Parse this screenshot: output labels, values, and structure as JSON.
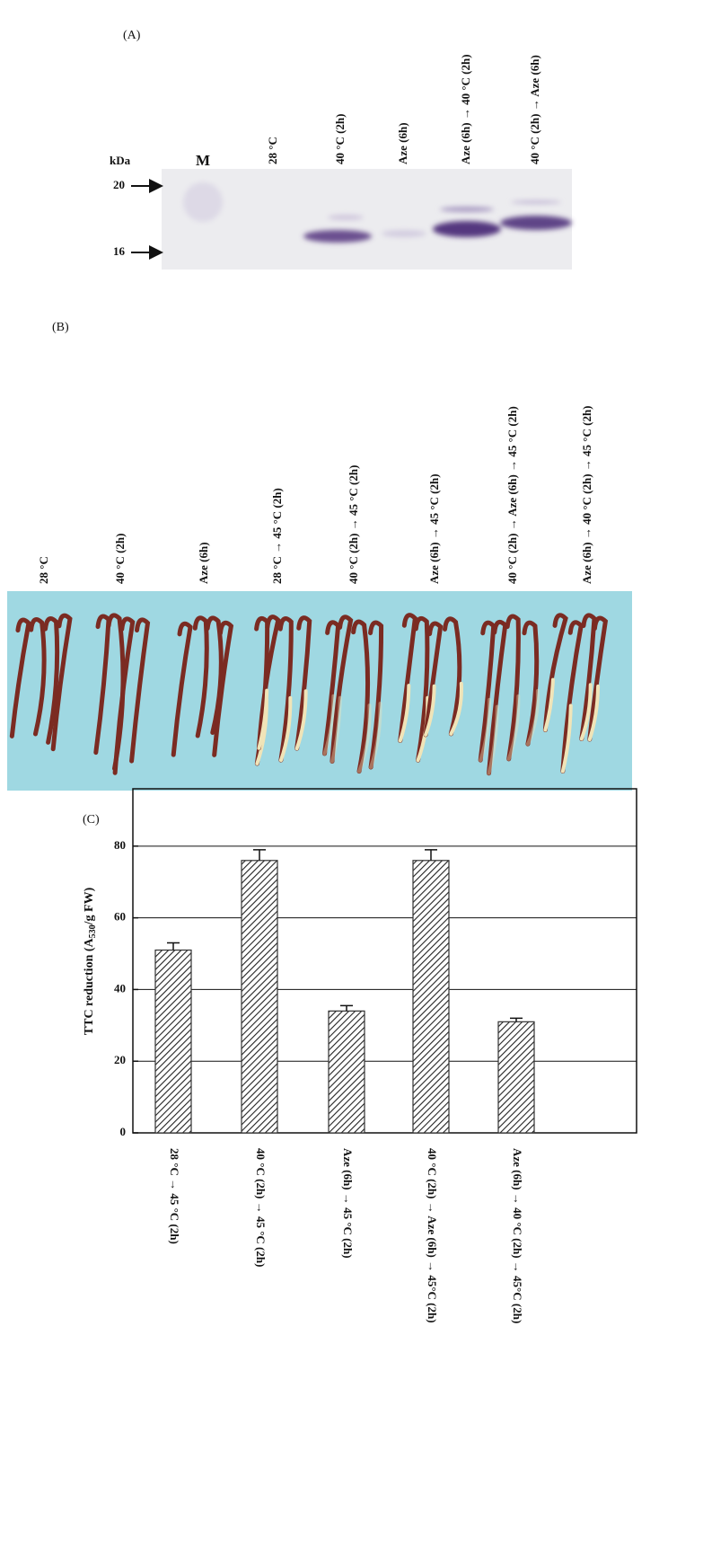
{
  "panel_a": {
    "label": "(A)",
    "unit": "kDa",
    "marker_lane": "M",
    "markers": [
      "20",
      "16"
    ],
    "lanes": [
      "28 °C",
      "40 °C (2h)",
      "Aze (6h)",
      "Aze (6h) → 40 °C (2h)",
      "40 °C (2h) → Aze (6h)"
    ]
  },
  "panel_b": {
    "label": "(B)",
    "lanes": [
      "28 °C",
      "40 °C (2h)",
      "Aze (6h)",
      "28 °C → 45 °C (2h)",
      "40 °C (2h) → 45 °C (2h)",
      "Aze (6h) → 45 °C (2h)",
      "40 °C (2h) → Aze (6h) → 45 °C (2h)",
      "Aze (6h) → 40 °C (2h) → 45 °C (2h)"
    ]
  },
  "chart_data": {
    "type": "bar",
    "label": "(C)",
    "y_label": [
      "TTC reduction (A",
      "530",
      "/g FW)"
    ],
    "categories": [
      "28 °C → 45 °C (2h)",
      "40 °C (2h) → 45 °C (2h)",
      "Aze (6h) → 45 °C (2h)",
      "40 °C (2h) → Aze (6h) → 45°C (2h)",
      "Aze (6h) → 40 °C (2h) → 45°C (2h)"
    ],
    "values": [
      51,
      76,
      34,
      76,
      31
    ],
    "errors": [
      2,
      3,
      1.5,
      3,
      1
    ],
    "color": "#333333",
    "ylim": [
      0,
      96
    ],
    "yticks": [
      0,
      20,
      40,
      60,
      80
    ],
    "grid": true
  }
}
